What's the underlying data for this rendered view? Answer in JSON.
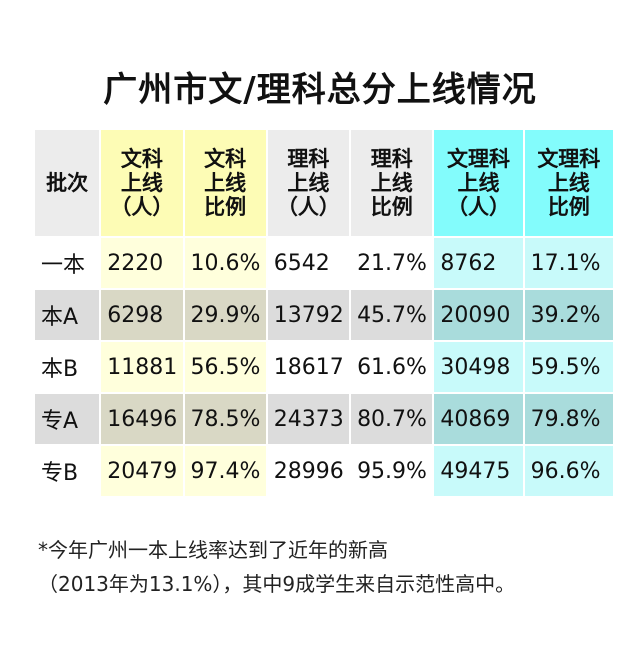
{
  "title": "广州市文/理科总分上线情况",
  "headers": [
    {
      "lines": [
        "批次"
      ]
    },
    {
      "lines": [
        "文科",
        "上线",
        "（人）"
      ]
    },
    {
      "lines": [
        "文科",
        "上线",
        "比例"
      ]
    },
    {
      "lines": [
        "理科",
        "上线",
        "（人）"
      ]
    },
    {
      "lines": [
        "理科",
        "上线",
        "比例"
      ]
    },
    {
      "lines": [
        "文理科",
        "上线",
        "（人）"
      ]
    },
    {
      "lines": [
        "文理科",
        "上线",
        "比例"
      ]
    }
  ],
  "rows": [
    {
      "batch": "一本",
      "wen_count": "2220",
      "wen_ratio": "10.6%",
      "li_count": "6542",
      "li_ratio": "21.7%",
      "total_count": "8762",
      "total_ratio": "17.1%"
    },
    {
      "batch": "本A",
      "wen_count": "6298",
      "wen_ratio": "29.9%",
      "li_count": "13792",
      "li_ratio": "45.7%",
      "total_count": "20090",
      "total_ratio": "39.2%"
    },
    {
      "batch": "本B",
      "wen_count": "11881",
      "wen_ratio": "56.5%",
      "li_count": "18617",
      "li_ratio": "61.6%",
      "total_count": "30498",
      "total_ratio": "59.5%"
    },
    {
      "batch": "专A",
      "wen_count": "16496",
      "wen_ratio": "78.5%",
      "li_count": "24373",
      "li_ratio": "80.7%",
      "total_count": "40869",
      "total_ratio": "79.8%"
    },
    {
      "batch": "专B",
      "wen_count": "20479",
      "wen_ratio": "97.4%",
      "li_count": "28996",
      "li_ratio": "95.9%",
      "total_count": "49475",
      "total_ratio": "96.6%"
    }
  ],
  "note": {
    "line1": "*今年广州一本上线率达到了近年的新高",
    "line2": "（2013年为13.1%），其中9成学生来自示范性高中。"
  }
}
